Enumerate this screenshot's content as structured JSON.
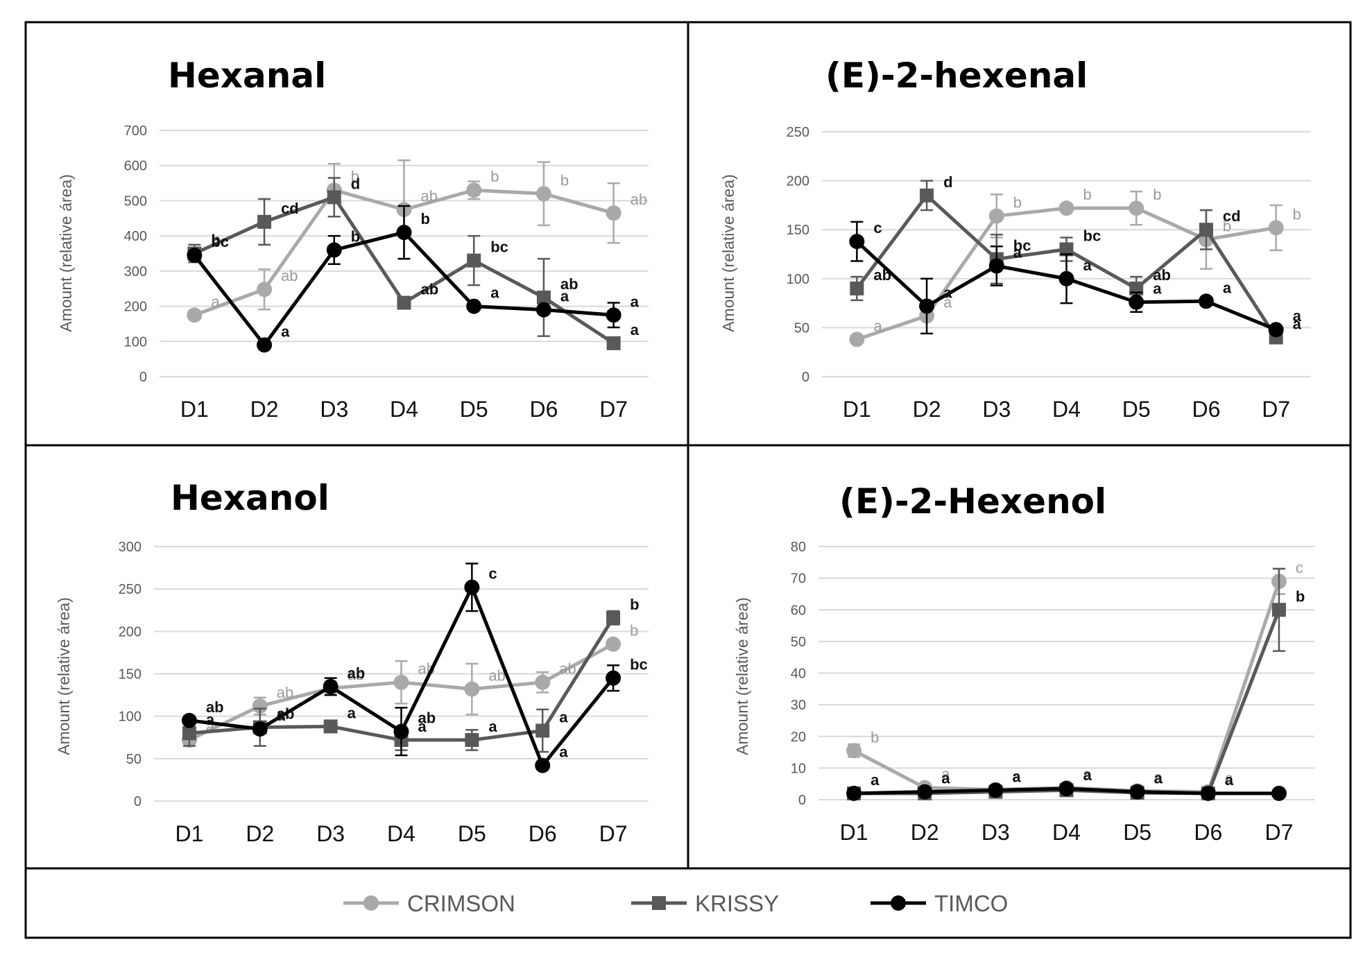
{
  "legend": [
    {
      "name": "CRIMSON",
      "color": "#a9a9a9",
      "marker": "circle"
    },
    {
      "name": "KRISSY",
      "color": "#595959",
      "marker": "square"
    },
    {
      "name": "TIMCO",
      "color": "#000000",
      "marker": "circle"
    }
  ],
  "chart_data": [
    {
      "type": "line",
      "title": "Hexanal",
      "ylabel": "Amount (relative área)",
      "xlabel": "",
      "ylim": [
        0,
        700
      ],
      "yticks": [
        0,
        100,
        200,
        300,
        400,
        500,
        600,
        700
      ],
      "categories": [
        "D1",
        "D2",
        "D3",
        "D4",
        "D5",
        "D6",
        "D7"
      ],
      "grid": true,
      "series": [
        {
          "name": "CRIMSON",
          "values": [
            175,
            248,
            530,
            475,
            530,
            520,
            465
          ],
          "errors": [
            0,
            57,
            75,
            140,
            25,
            90,
            85
          ],
          "letters": [
            "a",
            "ab",
            "b",
            "ab",
            "b",
            "b",
            "ab"
          ]
        },
        {
          "name": "KRISSY",
          "values": [
            350,
            440,
            510,
            210,
            330,
            225,
            95
          ],
          "errors": [
            25,
            65,
            55,
            0,
            70,
            110,
            0
          ],
          "letters": [
            "b",
            "cd",
            "d",
            "ab",
            "bc",
            "ab",
            "a"
          ]
        },
        {
          "name": "TIMCO",
          "values": [
            345,
            90,
            360,
            410,
            200,
            190,
            175
          ],
          "errors": [
            0,
            0,
            40,
            75,
            0,
            0,
            35
          ],
          "letters": [
            "bc",
            "a",
            "b",
            "b",
            "a",
            "a",
            "a"
          ]
        }
      ]
    },
    {
      "type": "line",
      "title": "(E)-2-hexenal",
      "ylabel": "Amount (relative área)",
      "xlabel": "",
      "ylim": [
        0,
        250
      ],
      "yticks": [
        0,
        50,
        100,
        150,
        200,
        250
      ],
      "categories": [
        "D1",
        "D2",
        "D3",
        "D4",
        "D5",
        "D6",
        "D7"
      ],
      "grid": true,
      "series": [
        {
          "name": "CRIMSON",
          "values": [
            38,
            62,
            164,
            172,
            172,
            140,
            152
          ],
          "errors": [
            0,
            0,
            22,
            0,
            17,
            30,
            23
          ],
          "letters": [
            "a",
            "a",
            "b",
            "b",
            "b",
            "b",
            "b"
          ]
        },
        {
          "name": "KRISSY",
          "values": [
            90,
            185,
            120,
            130,
            90,
            150,
            40
          ],
          "errors": [
            12,
            15,
            25,
            12,
            12,
            20,
            0
          ],
          "letters": [
            "ab",
            "d",
            "bc",
            "bc",
            "ab",
            "cd",
            "a"
          ]
        },
        {
          "name": "TIMCO",
          "values": [
            138,
            72,
            113,
            100,
            76,
            77,
            48
          ],
          "errors": [
            20,
            28,
            20,
            25,
            10,
            0,
            0
          ],
          "letters": [
            "c",
            "a",
            "a",
            "a",
            "a",
            "a",
            "a"
          ]
        }
      ]
    },
    {
      "type": "line",
      "title": "Hexanol",
      "ylabel": "Amount (relative área)",
      "xlabel": "",
      "ylim": [
        0,
        300
      ],
      "yticks": [
        0,
        50,
        100,
        150,
        200,
        250,
        300
      ],
      "categories": [
        "D1",
        "D2",
        "D3",
        "D4",
        "D5",
        "D6",
        "D7"
      ],
      "grid": true,
      "series": [
        {
          "name": "CRIMSON",
          "values": [
            72,
            112,
            133,
            140,
            132,
            140,
            185
          ],
          "errors": [
            0,
            10,
            8,
            25,
            30,
            12,
            0
          ],
          "letters": [
            "a",
            "ab",
            "ab",
            "ab",
            "ab",
            "ab",
            "b"
          ]
        },
        {
          "name": "KRISSY",
          "values": [
            80,
            87,
            88,
            72,
            72,
            83,
            216
          ],
          "errors": [
            15,
            22,
            0,
            12,
            12,
            25,
            8
          ],
          "letters": [
            "a",
            "ab",
            "a",
            "a",
            "a",
            "a",
            "b"
          ]
        },
        {
          "name": "TIMCO",
          "values": [
            95,
            85,
            135,
            82,
            252,
            42,
            145
          ],
          "errors": [
            0,
            0,
            10,
            28,
            28,
            0,
            15
          ],
          "letters": [
            "ab",
            "a",
            "ab",
            "ab",
            "c",
            "a",
            "bc"
          ]
        }
      ]
    },
    {
      "type": "line",
      "title": "(E)-2-Hexenol",
      "ylabel": "Amount (relative área)",
      "xlabel": "",
      "ylim": [
        0,
        80
      ],
      "yticks": [
        0,
        10,
        20,
        30,
        40,
        50,
        60,
        70,
        80
      ],
      "categories": [
        "D1",
        "D2",
        "D3",
        "D4",
        "D5",
        "D6",
        "D7"
      ],
      "grid": true,
      "series": [
        {
          "name": "CRIMSON",
          "values": [
            15.5,
            3.8,
            3.2,
            3.8,
            2.8,
            2.5,
            69
          ],
          "errors": [
            2,
            0,
            0,
            0,
            0,
            0,
            4
          ],
          "letters": [
            "b",
            "a",
            "a",
            "a",
            "a",
            "a",
            "c"
          ]
        },
        {
          "name": "KRISSY",
          "values": [
            2,
            2,
            2.5,
            3,
            2.2,
            2,
            60
          ],
          "errors": [
            0,
            0,
            0,
            0,
            0,
            0,
            13
          ],
          "letters": [
            "",
            "",
            "",
            "",
            "",
            "",
            "b"
          ]
        },
        {
          "name": "TIMCO",
          "values": [
            2,
            2.5,
            3,
            3.5,
            2.5,
            2,
            2
          ],
          "errors": [
            0,
            0,
            0,
            0,
            0,
            0,
            0
          ],
          "letters": [
            "a",
            "a",
            "a",
            "a",
            "a",
            "a",
            ""
          ]
        }
      ]
    }
  ]
}
